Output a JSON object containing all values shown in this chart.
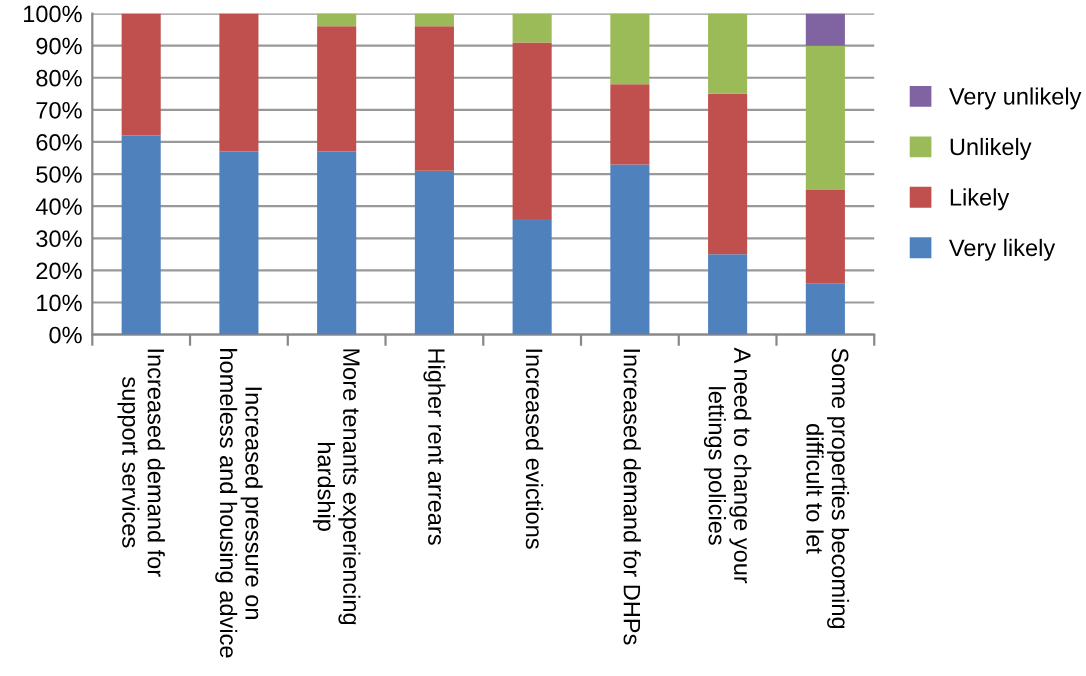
{
  "chart_data": {
    "type": "bar",
    "stacked": true,
    "categories": [
      "Increased demand for\nsupport services",
      "Increased pressure on\nhomeless and housing advice",
      "More tenants experiencing\nhardship",
      "Higher rent arrears",
      "Increased evictions",
      "Increased demand for DHPs",
      "A need to change your\nlettings policies",
      "Some properties becoming\ndifficult to let"
    ],
    "series": [
      {
        "name": "Very likely",
        "color": "#4f81bd",
        "values": [
          62,
          57,
          57,
          51,
          36,
          53,
          25,
          16
        ]
      },
      {
        "name": "Likely",
        "color": "#c0504d",
        "values": [
          38,
          43,
          39,
          45,
          55,
          25,
          50,
          29
        ]
      },
      {
        "name": "Unlikely",
        "color": "#9bbb59",
        "values": [
          0,
          0,
          4,
          4,
          9,
          22,
          25,
          45
        ]
      },
      {
        "name": "Very unlikely",
        "color": "#8064a2",
        "values": [
          0,
          0,
          0,
          0,
          0,
          0,
          0,
          10
        ]
      }
    ],
    "ylim": [
      0,
      100
    ],
    "yticks": [
      {
        "value": 0,
        "label": "0%"
      },
      {
        "value": 10,
        "label": "10%"
      },
      {
        "value": 20,
        "label": "20%"
      },
      {
        "value": 30,
        "label": "30%"
      },
      {
        "value": 40,
        "label": "40%"
      },
      {
        "value": 50,
        "label": "50%"
      },
      {
        "value": 60,
        "label": "60%"
      },
      {
        "value": 70,
        "label": "70%"
      },
      {
        "value": 80,
        "label": "80%"
      },
      {
        "value": 90,
        "label": "90%"
      },
      {
        "value": 100,
        "label": "100%"
      }
    ],
    "grid": "y",
    "legend": "right"
  }
}
